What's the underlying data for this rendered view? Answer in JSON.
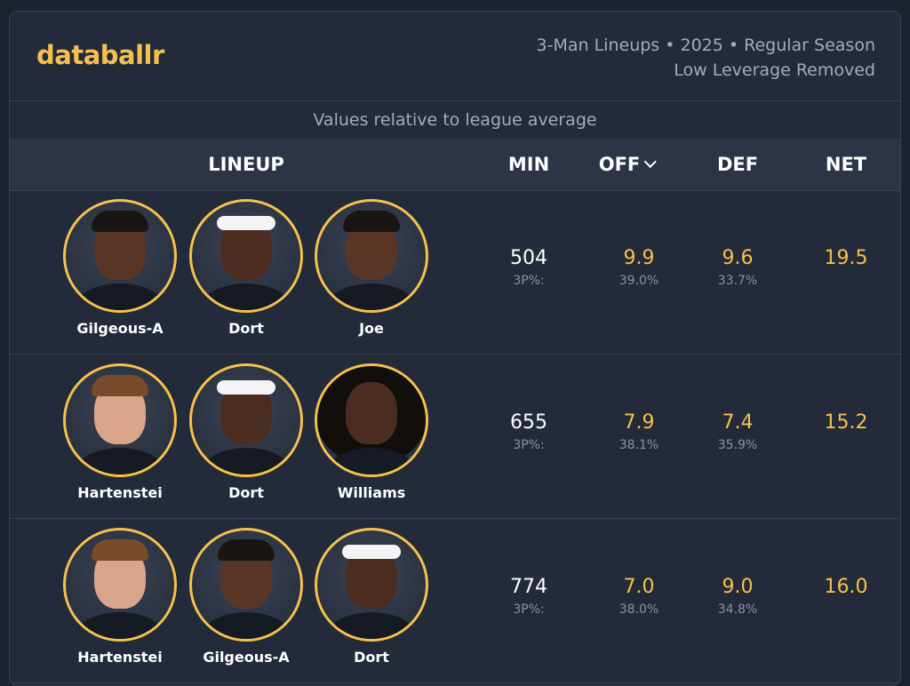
{
  "header": {
    "brand": "databallr",
    "meta_line1": "3-Man Lineups • 2025 • Regular Season",
    "meta_line2": "Low Leverage Removed"
  },
  "subheader": "Values relative to league average",
  "columns": {
    "lineup": "LINEUP",
    "min": "MIN",
    "off": "OFF",
    "def": "DEF",
    "net": "NET"
  },
  "colors": {
    "accent": "#f6c14b",
    "background": "#232a39",
    "text": "#ffffff",
    "muted": "#8a92a0"
  },
  "rows": [
    {
      "players": [
        {
          "name": "Gilgeous-A",
          "look": "braids"
        },
        {
          "name": "Dort",
          "look": "headband"
        },
        {
          "name": "Joe",
          "look": "braids"
        }
      ],
      "min": "504",
      "min_sub": "3P%:",
      "off": "9.9",
      "off_sub": "39.0%",
      "def": "9.6",
      "def_sub": "33.7%",
      "net": "19.5"
    },
    {
      "players": [
        {
          "name": "Hartenstei",
          "look": "light"
        },
        {
          "name": "Dort",
          "look": "headband"
        },
        {
          "name": "Williams",
          "look": "afro"
        }
      ],
      "min": "655",
      "min_sub": "3P%:",
      "off": "7.9",
      "off_sub": "38.1%",
      "def": "7.4",
      "def_sub": "35.9%",
      "net": "15.2"
    },
    {
      "players": [
        {
          "name": "Hartenstei",
          "look": "light"
        },
        {
          "name": "Gilgeous-A",
          "look": "braids"
        },
        {
          "name": "Dort",
          "look": "headband"
        }
      ],
      "min": "774",
      "min_sub": "3P%:",
      "off": "7.0",
      "off_sub": "38.0%",
      "def": "9.0",
      "def_sub": "34.8%",
      "net": "16.0"
    }
  ]
}
